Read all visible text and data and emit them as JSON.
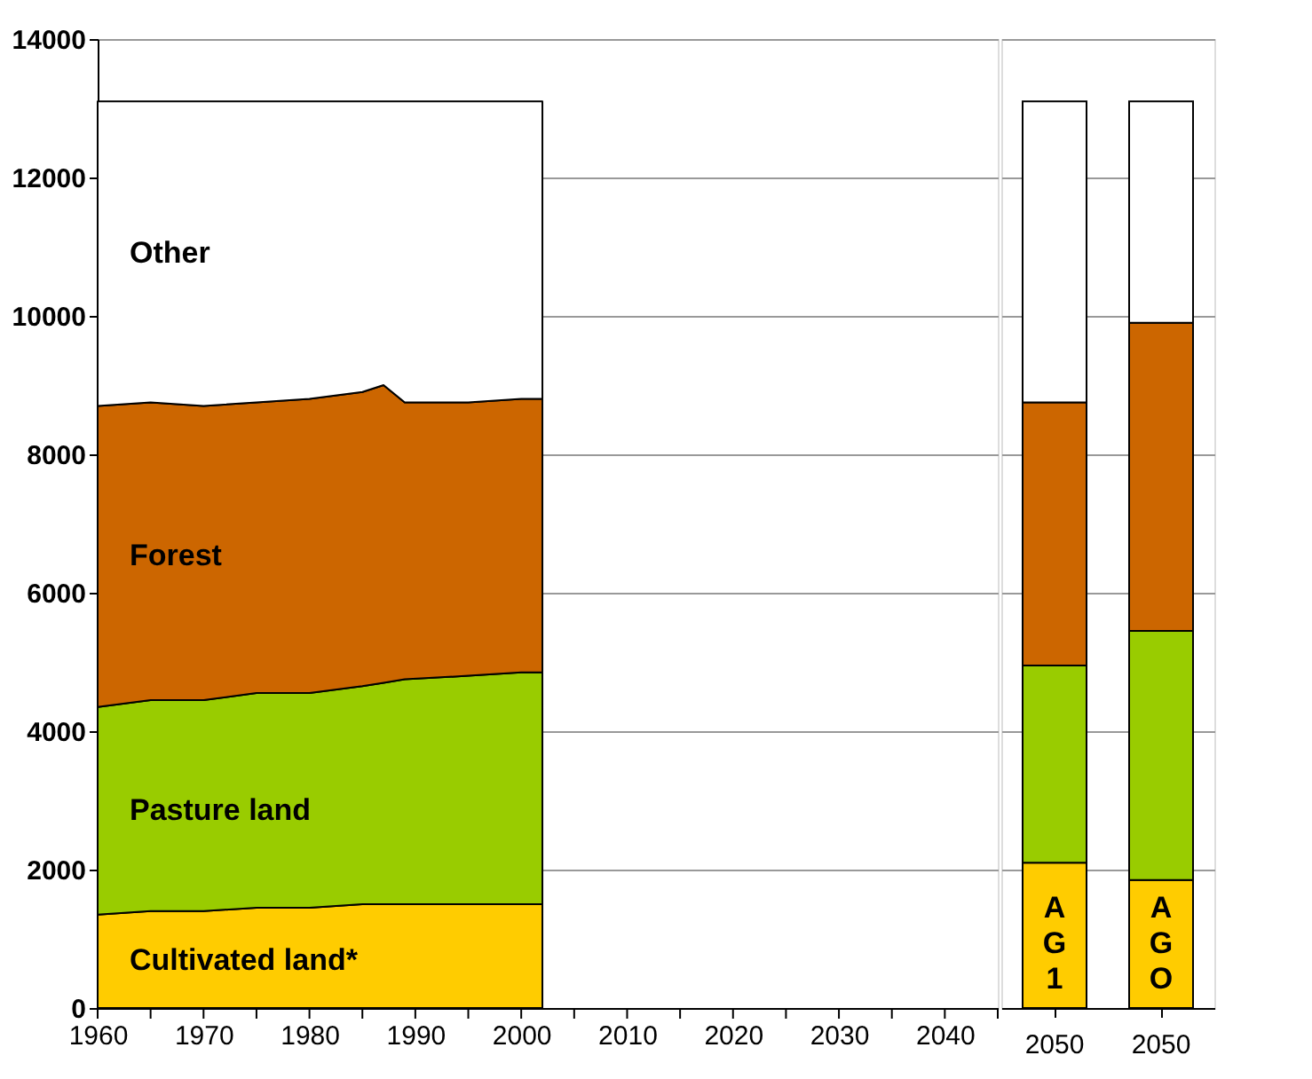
{
  "chart_data": [
    {
      "type": "area",
      "stacked": true,
      "grid": "y",
      "xlim": [
        1960,
        2045
      ],
      "ylim": [
        0,
        14000
      ],
      "yticks": [
        0,
        2000,
        4000,
        6000,
        8000,
        10000,
        12000,
        14000
      ],
      "xticks": [
        1960,
        {
          "value": 1965,
          "label": null
        },
        1970,
        {
          "value": 1975,
          "label": null
        },
        1980,
        {
          "value": 1985,
          "label": null
        },
        1990,
        {
          "value": 1995,
          "label": null
        },
        2000,
        {
          "value": 2005,
          "label": null
        },
        2010,
        {
          "value": 2015,
          "label": null
        },
        2020,
        {
          "value": 2025,
          "label": null
        },
        2030,
        {
          "value": 2035,
          "label": null
        },
        2040,
        {
          "value": 2045,
          "label": null
        }
      ],
      "series": [
        {
          "name": "Cultivated land*",
          "color": "#ffcc00",
          "x": [
            1960,
            1965,
            1970,
            1975,
            1980,
            1985,
            1987,
            1989,
            1995,
            2000,
            2002
          ],
          "values": [
            1350,
            1400,
            1400,
            1450,
            1450,
            1500,
            1500,
            1500,
            1500,
            1500,
            1500
          ]
        },
        {
          "name": "Pasture land",
          "color": "#99cc00",
          "x": [
            1960,
            1965,
            1970,
            1975,
            1980,
            1985,
            1987,
            1989,
            1995,
            2000,
            2002
          ],
          "values": [
            3000,
            3050,
            3050,
            3100,
            3100,
            3150,
            3200,
            3250,
            3300,
            3350,
            3350
          ]
        },
        {
          "name": "Forest",
          "color": "#cc6600",
          "x": [
            1960,
            1965,
            1970,
            1975,
            1980,
            1985,
            1987,
            1989,
            1995,
            2000,
            2002
          ],
          "values": [
            4350,
            4300,
            4250,
            4200,
            4250,
            4250,
            4300,
            4000,
            3950,
            3950,
            3950
          ]
        },
        {
          "name": "Other",
          "color": "#ffffff",
          "x": [
            1960,
            1965,
            1970,
            1975,
            1980,
            1985,
            1987,
            1989,
            1995,
            2000,
            2002
          ],
          "values": [
            4400,
            4350,
            4400,
            4350,
            4300,
            4200,
            4100,
            4350,
            4350,
            4300,
            4300
          ]
        }
      ]
    },
    {
      "type": "bar",
      "stacked": true,
      "grid": "y",
      "tick_labels": "x",
      "categories": [
        "2050",
        "2050"
      ],
      "ylim": [
        0,
        14000
      ],
      "yticks": [
        0,
        2000,
        4000,
        6000,
        8000,
        10000,
        12000,
        14000
      ],
      "series": [
        {
          "color": "#ffcc00",
          "values": [
            2100,
            1850
          ]
        },
        {
          "color": "#99cc00",
          "values": [
            2850,
            3600
          ]
        },
        {
          "color": "#cc6600",
          "values": [
            3800,
            4450
          ]
        },
        {
          "color": "#ffffff",
          "values": [
            4350,
            3200
          ]
        }
      ],
      "annotations": [
        "AG1",
        "AGO"
      ]
    }
  ]
}
